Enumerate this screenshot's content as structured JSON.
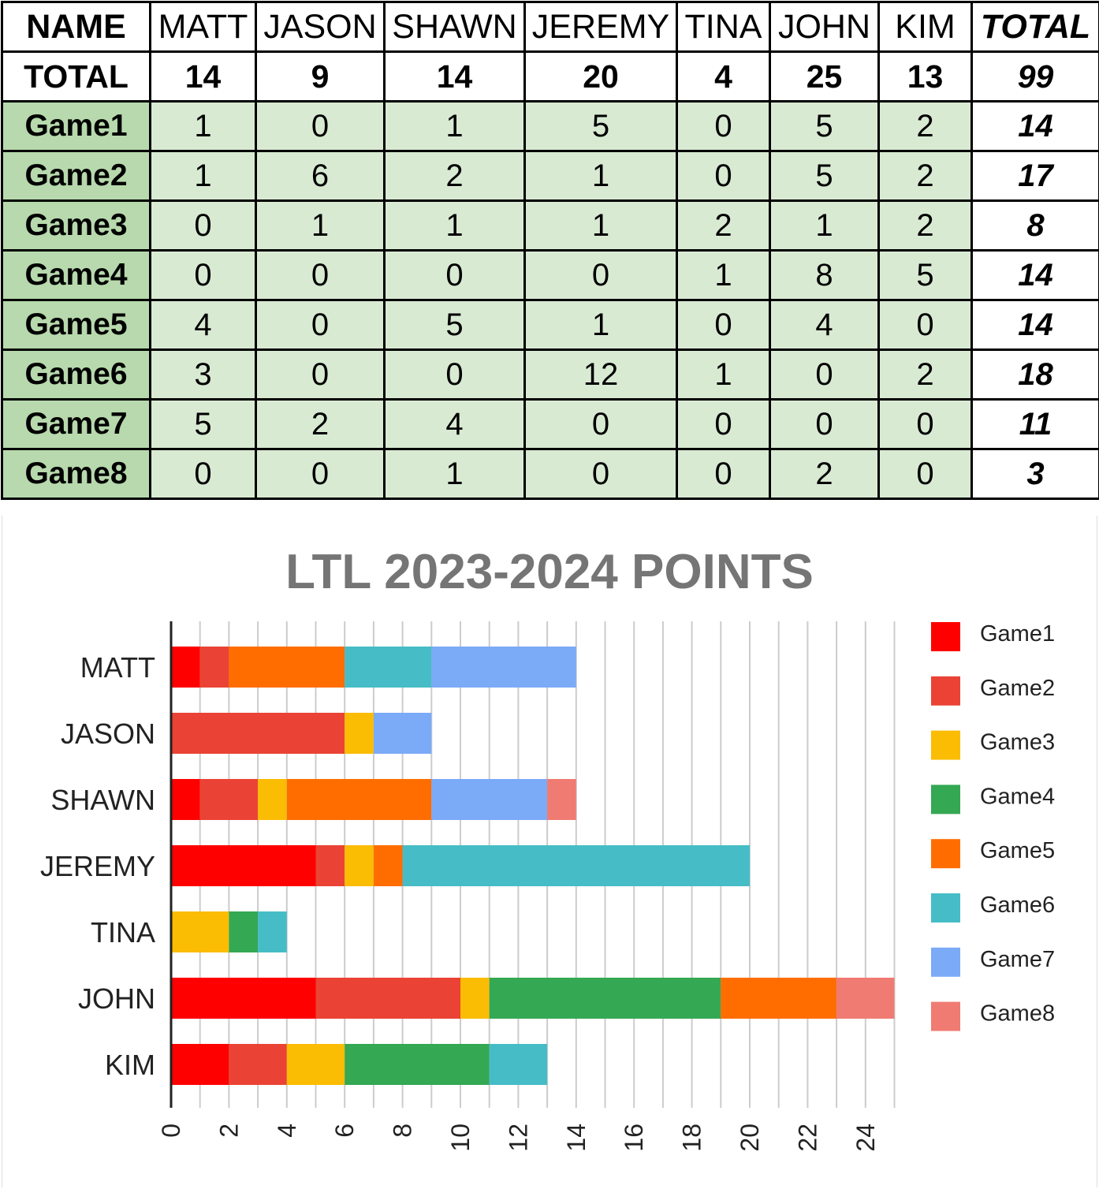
{
  "table": {
    "name_label": "NAME",
    "total_label": "TOTAL",
    "players": [
      "MATT",
      "JASON",
      "SHAWN",
      "JEREMY",
      "TINA",
      "JOHN",
      "KIM"
    ],
    "total_column_label": "TOTAL",
    "player_totals": [
      "14",
      "9",
      "14",
      "20",
      "4",
      "25",
      "13"
    ],
    "grand_total": "99",
    "games": [
      {
        "name": "Game1",
        "values": [
          "1",
          "0",
          "1",
          "5",
          "0",
          "5",
          "2"
        ],
        "total": "14"
      },
      {
        "name": "Game2",
        "values": [
          "1",
          "6",
          "2",
          "1",
          "0",
          "5",
          "2"
        ],
        "total": "17"
      },
      {
        "name": "Game3",
        "values": [
          "0",
          "1",
          "1",
          "1",
          "2",
          "1",
          "2"
        ],
        "total": "8"
      },
      {
        "name": "Game4",
        "values": [
          "0",
          "0",
          "0",
          "0",
          "1",
          "8",
          "5"
        ],
        "total": "14"
      },
      {
        "name": "Game5",
        "values": [
          "4",
          "0",
          "5",
          "1",
          "0",
          "4",
          "0"
        ],
        "total": "14"
      },
      {
        "name": "Game6",
        "values": [
          "3",
          "0",
          "0",
          "12",
          "1",
          "0",
          "2"
        ],
        "total": "18"
      },
      {
        "name": "Game7",
        "values": [
          "5",
          "2",
          "4",
          "0",
          "0",
          "0",
          "0"
        ],
        "total": "11"
      },
      {
        "name": "Game8",
        "values": [
          "0",
          "0",
          "1",
          "0",
          "0",
          "2",
          "0"
        ],
        "total": "3"
      }
    ]
  },
  "chart_data": {
    "type": "bar",
    "orientation": "horizontal",
    "stacked": true,
    "title": "LTL 2023-2024 POINTS",
    "xlabel": "",
    "ylabel": "",
    "categories": [
      "MATT",
      "JASON",
      "SHAWN",
      "JEREMY",
      "TINA",
      "JOHN",
      "KIM"
    ],
    "xlim": [
      0,
      25
    ],
    "x_ticks": [
      0,
      2,
      4,
      6,
      8,
      10,
      12,
      14,
      16,
      18,
      20,
      22,
      24
    ],
    "grid": true,
    "legend_position": "right",
    "series": [
      {
        "name": "Game1",
        "color": "#ff0000",
        "values": [
          1,
          0,
          1,
          5,
          0,
          5,
          2
        ]
      },
      {
        "name": "Game2",
        "color": "#ea4335",
        "values": [
          1,
          6,
          2,
          1,
          0,
          5,
          2
        ]
      },
      {
        "name": "Game3",
        "color": "#fbbc04",
        "values": [
          0,
          1,
          1,
          1,
          2,
          1,
          2
        ]
      },
      {
        "name": "Game4",
        "color": "#34a853",
        "values": [
          0,
          0,
          0,
          0,
          1,
          8,
          5
        ]
      },
      {
        "name": "Game5",
        "color": "#ff6d01",
        "values": [
          4,
          0,
          5,
          1,
          0,
          4,
          0
        ]
      },
      {
        "name": "Game6",
        "color": "#46bdc6",
        "values": [
          3,
          0,
          0,
          12,
          1,
          0,
          2
        ]
      },
      {
        "name": "Game7",
        "color": "#7baaf7",
        "values": [
          5,
          2,
          4,
          0,
          0,
          0,
          0
        ]
      },
      {
        "name": "Game8",
        "color": "#f07b72",
        "values": [
          0,
          0,
          1,
          0,
          0,
          2,
          0
        ]
      }
    ]
  }
}
